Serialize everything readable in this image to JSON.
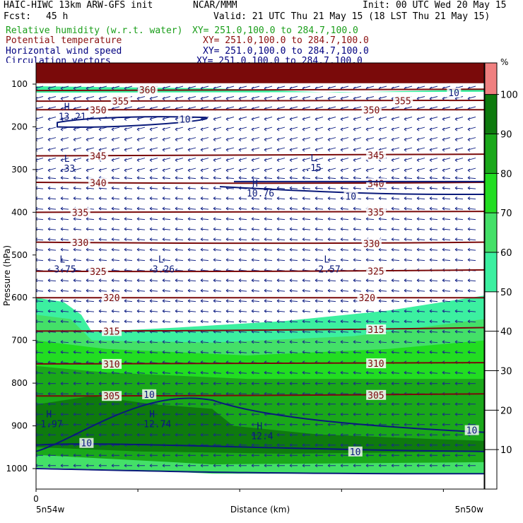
{
  "header": {
    "model": "HAIC-HIWC 13km ARW-GFS init",
    "org": "NCAR/MMM",
    "init": "Init: 00 UTC Wed 20 May 15",
    "fcst_label": "Fcst:",
    "fcst_value": "45 h",
    "valid": "Valid: 21 UTC Thu 21 May 15 (18 LST Thu 21 May 15)"
  },
  "fields": [
    {
      "name": "Relative humidity (w.r.t. water)",
      "xy": "XY= 251.0,100.0 to 284.7,100.0",
      "color": "#1a9e1a"
    },
    {
      "name": "Potential temperature",
      "xy": "XY= 251.0,100.0 to 284.7,100.0",
      "color": "#8b1010"
    },
    {
      "name": "Horizontal wind speed",
      "xy": "XY= 251.0,100.0 to 284.7,100.0",
      "color": "#000080"
    },
    {
      "name": "Circulation vectors",
      "xy": "XY= 251.0,100.0 to 284.7,100.0",
      "color": "#000080"
    }
  ],
  "colors": {
    "theta": "#7a0a0a",
    "wind": "#0a1a7a",
    "vector": "#1a2a8a"
  },
  "chart_data": {
    "type": "heatmap",
    "ylabel": "Pressure (hPa)",
    "xlabel": "Distance (km)",
    "x_start_tick": "0",
    "x_left_label": "5n54w",
    "x_right_label": "5n50w",
    "y_ticks": [
      100,
      200,
      300,
      400,
      500,
      600,
      700,
      800,
      900,
      1000
    ],
    "ylim": [
      50,
      1050
    ],
    "colorbar": {
      "unit": "%",
      "levels": [
        10,
        20,
        30,
        40,
        50,
        60,
        70,
        80,
        90,
        100
      ],
      "bands": [
        {
          "from": 50,
          "to": 60,
          "color": "#3cf0a0"
        },
        {
          "from": 60,
          "to": 70,
          "color": "#44e068"
        },
        {
          "from": 70,
          "to": 80,
          "color": "#22dd22"
        },
        {
          "from": 80,
          "to": 90,
          "color": "#1aa81a"
        },
        {
          "from": 90,
          "to": 100,
          "color": "#0e7a0e"
        },
        {
          "from": 100,
          "to": 110,
          "color": "#f08080"
        }
      ]
    },
    "theta_contours": [
      {
        "level": "320",
        "p": [
          600,
          600,
          600
        ],
        "labels": [
          [
            0.15,
            "320"
          ],
          [
            0.72,
            "320"
          ]
        ]
      },
      {
        "level": "325",
        "p": [
          538,
          540,
          535
        ],
        "labels": [
          [
            0.12,
            "325"
          ],
          [
            0.74,
            "325"
          ]
        ]
      },
      {
        "level": "330",
        "p": [
          470,
          475,
          470
        ],
        "labels": [
          [
            0.08,
            "330"
          ],
          [
            0.73,
            "330"
          ]
        ]
      },
      {
        "level": "335",
        "p": [
          400,
          400,
          398
        ],
        "labels": [
          [
            0.08,
            "335"
          ],
          [
            0.74,
            "335"
          ]
        ]
      },
      {
        "level": "340",
        "p": [
          330,
          334,
          330
        ],
        "labels": [
          [
            0.12,
            "340"
          ],
          [
            0.74,
            "340"
          ]
        ]
      },
      {
        "level": "345",
        "p": [
          268,
          268,
          264
        ],
        "labels": [
          [
            0.12,
            "345"
          ],
          [
            0.74,
            "345"
          ]
        ]
      },
      {
        "level": "350",
        "p": [
          160,
          160,
          160
        ],
        "labels": [
          [
            0.12,
            "350"
          ],
          [
            0.73,
            "350"
          ]
        ]
      },
      {
        "level": "355",
        "p": [
          140,
          140,
          138
        ],
        "labels": [
          [
            0.17,
            "355"
          ],
          [
            0.8,
            "355"
          ]
        ]
      },
      {
        "level": "360",
        "p": [
          115,
          112,
          112
        ],
        "labels": [
          [
            0.23,
            "360"
          ]
        ]
      },
      {
        "level": "315",
        "p": [
          678,
          678,
          670
        ],
        "labels": [
          [
            0.15,
            "315"
          ],
          [
            0.74,
            "315"
          ]
        ]
      },
      {
        "level": "310",
        "p": [
          755,
          755,
          752
        ],
        "labels": [
          [
            0.15,
            "310"
          ],
          [
            0.74,
            "310"
          ]
        ]
      },
      {
        "level": "305",
        "p": [
          830,
          830,
          825
        ],
        "labels": [
          [
            0.15,
            "305"
          ],
          [
            0.74,
            "305"
          ]
        ]
      }
    ],
    "wind_contour_labels": [
      {
        "x": 0.32,
        "p": 182,
        "text": "10"
      },
      {
        "x": 0.69,
        "p": 362,
        "text": "10"
      },
      {
        "x": 0.24,
        "p": 826,
        "text": "10"
      },
      {
        "x": 0.96,
        "p": 910,
        "text": "10"
      },
      {
        "x": 0.1,
        "p": 940,
        "text": "10"
      },
      {
        "x": 0.7,
        "p": 960,
        "text": "10"
      },
      {
        "x": 0.92,
        "p": 120,
        "text": "10"
      }
    ],
    "annotations": [
      {
        "x": 0.05,
        "p": 160,
        "sym": "H",
        "value": "13.21"
      },
      {
        "x": 0.05,
        "p": 282,
        "sym": "L",
        "value": ".33"
      },
      {
        "x": 0.6,
        "p": 280,
        "sym": "L",
        "value": ".15"
      },
      {
        "x": 0.47,
        "p": 340,
        "sym": "H",
        "value": "10.76"
      },
      {
        "x": 0.04,
        "p": 518,
        "sym": "L",
        "value": "3.75"
      },
      {
        "x": 0.26,
        "p": 518,
        "sym": "L",
        "value": "3.26"
      },
      {
        "x": 0.63,
        "p": 518,
        "sym": "L",
        "value": "2.57"
      },
      {
        "x": 0.01,
        "p": 880,
        "sym": "H",
        "value": "1.97"
      },
      {
        "x": 0.24,
        "p": 880,
        "sym": "H",
        "value": "12.74"
      },
      {
        "x": 0.48,
        "p": 908,
        "sym": "H",
        "value": "12.4"
      }
    ]
  }
}
